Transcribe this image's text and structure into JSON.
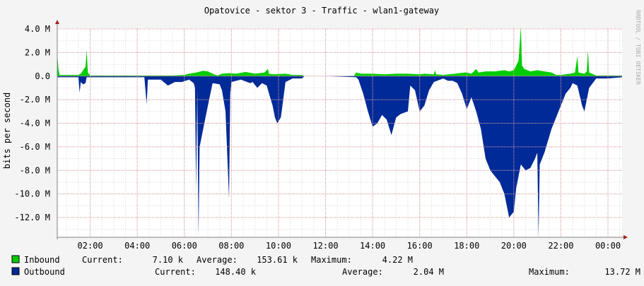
{
  "title": "Opatovice - sektor 3 - Traffic - wlan1-gateway",
  "ylabel": "bits per second",
  "watermark": "RRDTOOL / TOBI OETIKER",
  "colors": {
    "background": "#f4f4f4",
    "plot": "#ffffff",
    "grid_major": "#e6a0a0",
    "grid_minor": "#d8d8d8",
    "axis": "#808080",
    "arrow": "#a02020",
    "inbound": "#00cc00",
    "outbound": "#002a97",
    "text": "#000000"
  },
  "legend": {
    "inbound": {
      "name": "Inbound",
      "current_label": "Current:",
      "current": "7.10 k",
      "average_label": "Average:",
      "average": "153.61 k",
      "maximum_label": "Maximum:",
      "maximum": "4.22 M"
    },
    "outbound": {
      "name": "Outbound",
      "current_label": "Current:",
      "current": "148.40 k",
      "average_label": "Average:",
      "average": "2.04 M",
      "maximum_label": "Maximum:",
      "maximum": "13.72 M"
    }
  },
  "chart_data": {
    "type": "area",
    "title": "Opatovice - sektor 3 - Traffic - wlan1-gateway",
    "ylabel": "bits per second",
    "ylim": [
      -13.7,
      4.2
    ],
    "y_ticks": [
      4,
      2,
      0,
      -2,
      -4,
      -6,
      -8,
      -10,
      -12
    ],
    "y_tick_labels": [
      "4.0 M",
      "2.0 M",
      "0.0",
      "-2.0 M",
      "-4.0 M",
      "-6.0 M",
      "-8.0 M",
      "-10.0 M",
      "-12.0 M"
    ],
    "x_unit": "hours",
    "xlim": [
      0.6,
      24.6
    ],
    "x_ticks": [
      2,
      4,
      6,
      8,
      10,
      12,
      14,
      16,
      18,
      20,
      22,
      24
    ],
    "x_tick_labels": [
      "02:00",
      "04:00",
      "06:00",
      "08:00",
      "10:00",
      "12:00",
      "14:00",
      "16:00",
      "18:00",
      "20:00",
      "22:00",
      "00:00"
    ],
    "grid": true,
    "legend_position": "bottom",
    "series": [
      {
        "name": "Inbound",
        "color": "#00cc00",
        "points": [
          [
            0.6,
            1.9
          ],
          [
            0.65,
            0.6
          ],
          [
            0.7,
            0.1
          ],
          [
            1.5,
            0.1
          ],
          [
            1.6,
            0.2
          ],
          [
            1.8,
            0.8
          ],
          [
            1.85,
            2.2
          ],
          [
            1.9,
            0.3
          ],
          [
            2.0,
            0.05
          ],
          [
            4.0,
            0.05
          ],
          [
            5.5,
            0.05
          ],
          [
            6.0,
            0.1
          ],
          [
            6.2,
            0.2
          ],
          [
            6.5,
            0.3
          ],
          [
            6.8,
            0.45
          ],
          [
            7.0,
            0.4
          ],
          [
            7.2,
            0.2
          ],
          [
            7.4,
            0.05
          ],
          [
            7.6,
            0.2
          ],
          [
            7.9,
            0.25
          ],
          [
            8.2,
            0.2
          ],
          [
            8.6,
            0.35
          ],
          [
            9.0,
            0.2
          ],
          [
            9.4,
            0.3
          ],
          [
            9.55,
            0.6
          ],
          [
            9.6,
            0.2
          ],
          [
            9.8,
            0.15
          ],
          [
            10.3,
            0.2
          ],
          [
            10.6,
            0.1
          ],
          [
            11.0,
            0.1
          ],
          [
            11.1,
            0.0
          ],
          [
            11.9,
            0.0
          ],
          [
            13.2,
            0.0
          ],
          [
            13.3,
            0.3
          ],
          [
            13.5,
            0.2
          ],
          [
            14.0,
            0.2
          ],
          [
            14.5,
            0.15
          ],
          [
            15.0,
            0.2
          ],
          [
            15.5,
            0.2
          ],
          [
            16.0,
            0.15
          ],
          [
            16.2,
            0.2
          ],
          [
            16.6,
            0.15
          ],
          [
            16.65,
            0.5
          ],
          [
            16.7,
            0.15
          ],
          [
            17.0,
            0.1
          ],
          [
            17.5,
            0.2
          ],
          [
            17.9,
            0.3
          ],
          [
            18.0,
            0.3
          ],
          [
            18.2,
            0.2
          ],
          [
            18.4,
            0.6
          ],
          [
            18.5,
            0.3
          ],
          [
            18.8,
            0.4
          ],
          [
            19.2,
            0.4
          ],
          [
            19.6,
            0.5
          ],
          [
            19.8,
            0.4
          ],
          [
            20.0,
            0.5
          ],
          [
            20.2,
            1.3
          ],
          [
            20.3,
            4.2
          ],
          [
            20.35,
            0.9
          ],
          [
            20.45,
            0.6
          ],
          [
            20.7,
            0.4
          ],
          [
            21.0,
            0.5
          ],
          [
            21.3,
            0.4
          ],
          [
            21.6,
            0.3
          ],
          [
            21.8,
            0.1
          ],
          [
            22.0,
            0.1
          ],
          [
            22.4,
            0.2
          ],
          [
            22.6,
            0.3
          ],
          [
            22.7,
            1.7
          ],
          [
            22.75,
            0.3
          ],
          [
            23.0,
            0.2
          ],
          [
            23.1,
            0.4
          ],
          [
            23.15,
            2.2
          ],
          [
            23.2,
            0.3
          ],
          [
            23.5,
            0.05
          ],
          [
            24.0,
            0.05
          ],
          [
            24.6,
            0.05
          ]
        ]
      },
      {
        "name": "Outbound",
        "color": "#002a97",
        "points": [
          [
            0.6,
            -0.1
          ],
          [
            1.5,
            -0.1
          ],
          [
            1.55,
            -1.4
          ],
          [
            1.6,
            -0.5
          ],
          [
            1.7,
            -0.7
          ],
          [
            1.8,
            -0.6
          ],
          [
            1.85,
            -0.1
          ],
          [
            2.0,
            -0.1
          ],
          [
            2.5,
            -0.1
          ],
          [
            3.0,
            -0.1
          ],
          [
            3.5,
            -0.1
          ],
          [
            4.0,
            -0.1
          ],
          [
            4.3,
            -0.1
          ],
          [
            4.4,
            -2.4
          ],
          [
            4.45,
            -0.3
          ],
          [
            5.0,
            -0.3
          ],
          [
            5.3,
            -0.8
          ],
          [
            5.6,
            -0.5
          ],
          [
            5.9,
            -0.5
          ],
          [
            6.2,
            -0.3
          ],
          [
            6.4,
            -0.6
          ],
          [
            6.45,
            -1.0
          ],
          [
            6.5,
            -9.5
          ],
          [
            6.55,
            -1.2
          ],
          [
            6.6,
            -13.6
          ],
          [
            6.65,
            -6.0
          ],
          [
            6.8,
            -4.5
          ],
          [
            7.0,
            -2.5
          ],
          [
            7.2,
            -0.6
          ],
          [
            7.5,
            -0.7
          ],
          [
            7.6,
            -1.2
          ],
          [
            7.75,
            -3.0
          ],
          [
            7.9,
            -10.4
          ],
          [
            7.95,
            -1.5
          ],
          [
            8.0,
            -0.5
          ],
          [
            8.4,
            -0.3
          ],
          [
            8.8,
            -0.6
          ],
          [
            8.9,
            -0.5
          ],
          [
            9.1,
            -1.0
          ],
          [
            9.3,
            -0.6
          ],
          [
            9.5,
            -0.8
          ],
          [
            9.6,
            -1.5
          ],
          [
            9.75,
            -2.5
          ],
          [
            9.85,
            -3.5
          ],
          [
            9.95,
            -4.0
          ],
          [
            10.1,
            -3.5
          ],
          [
            10.3,
            -0.5
          ],
          [
            10.6,
            -0.2
          ],
          [
            11.0,
            -0.2
          ],
          [
            11.1,
            0.0
          ],
          [
            12.0,
            0.0
          ],
          [
            13.3,
            -0.1
          ],
          [
            13.4,
            -0.3
          ],
          [
            13.6,
            -1.5
          ],
          [
            13.8,
            -3.0
          ],
          [
            14.0,
            -4.3
          ],
          [
            14.2,
            -4.0
          ],
          [
            14.4,
            -3.3
          ],
          [
            14.6,
            -3.7
          ],
          [
            14.8,
            -5.0
          ],
          [
            15.0,
            -3.5
          ],
          [
            15.2,
            -3.2
          ],
          [
            15.5,
            -3.0
          ],
          [
            15.6,
            -0.8
          ],
          [
            15.8,
            -1.2
          ],
          [
            16.0,
            -3.0
          ],
          [
            16.2,
            -2.5
          ],
          [
            16.4,
            -1.2
          ],
          [
            16.6,
            -0.5
          ],
          [
            17.0,
            -0.2
          ],
          [
            17.2,
            -0.4
          ],
          [
            17.4,
            -0.4
          ],
          [
            17.6,
            -0.6
          ],
          [
            17.8,
            -1.5
          ],
          [
            18.0,
            -2.8
          ],
          [
            18.2,
            -1.8
          ],
          [
            18.4,
            -3.0
          ],
          [
            18.6,
            -4.5
          ],
          [
            18.8,
            -7.0
          ],
          [
            19.0,
            -8.0
          ],
          [
            19.2,
            -8.5
          ],
          [
            19.4,
            -9.0
          ],
          [
            19.6,
            -10.0
          ],
          [
            19.8,
            -12.0
          ],
          [
            20.0,
            -11.5
          ],
          [
            20.1,
            -9.5
          ],
          [
            20.3,
            -7.5
          ],
          [
            20.5,
            -8.0
          ],
          [
            20.7,
            -7.8
          ],
          [
            20.9,
            -7.0
          ],
          [
            21.0,
            -6.5
          ],
          [
            21.05,
            -13.7
          ],
          [
            21.1,
            -7.5
          ],
          [
            21.3,
            -6.5
          ],
          [
            21.6,
            -4.5
          ],
          [
            21.9,
            -3.0
          ],
          [
            22.2,
            -1.5
          ],
          [
            22.4,
            -1.0
          ],
          [
            22.5,
            -0.6
          ],
          [
            22.7,
            -0.8
          ],
          [
            22.9,
            -2.5
          ],
          [
            23.0,
            -3.0
          ],
          [
            23.2,
            -1.0
          ],
          [
            23.5,
            -0.2
          ],
          [
            24.0,
            -0.2
          ],
          [
            24.6,
            -0.1
          ]
        ]
      }
    ]
  }
}
